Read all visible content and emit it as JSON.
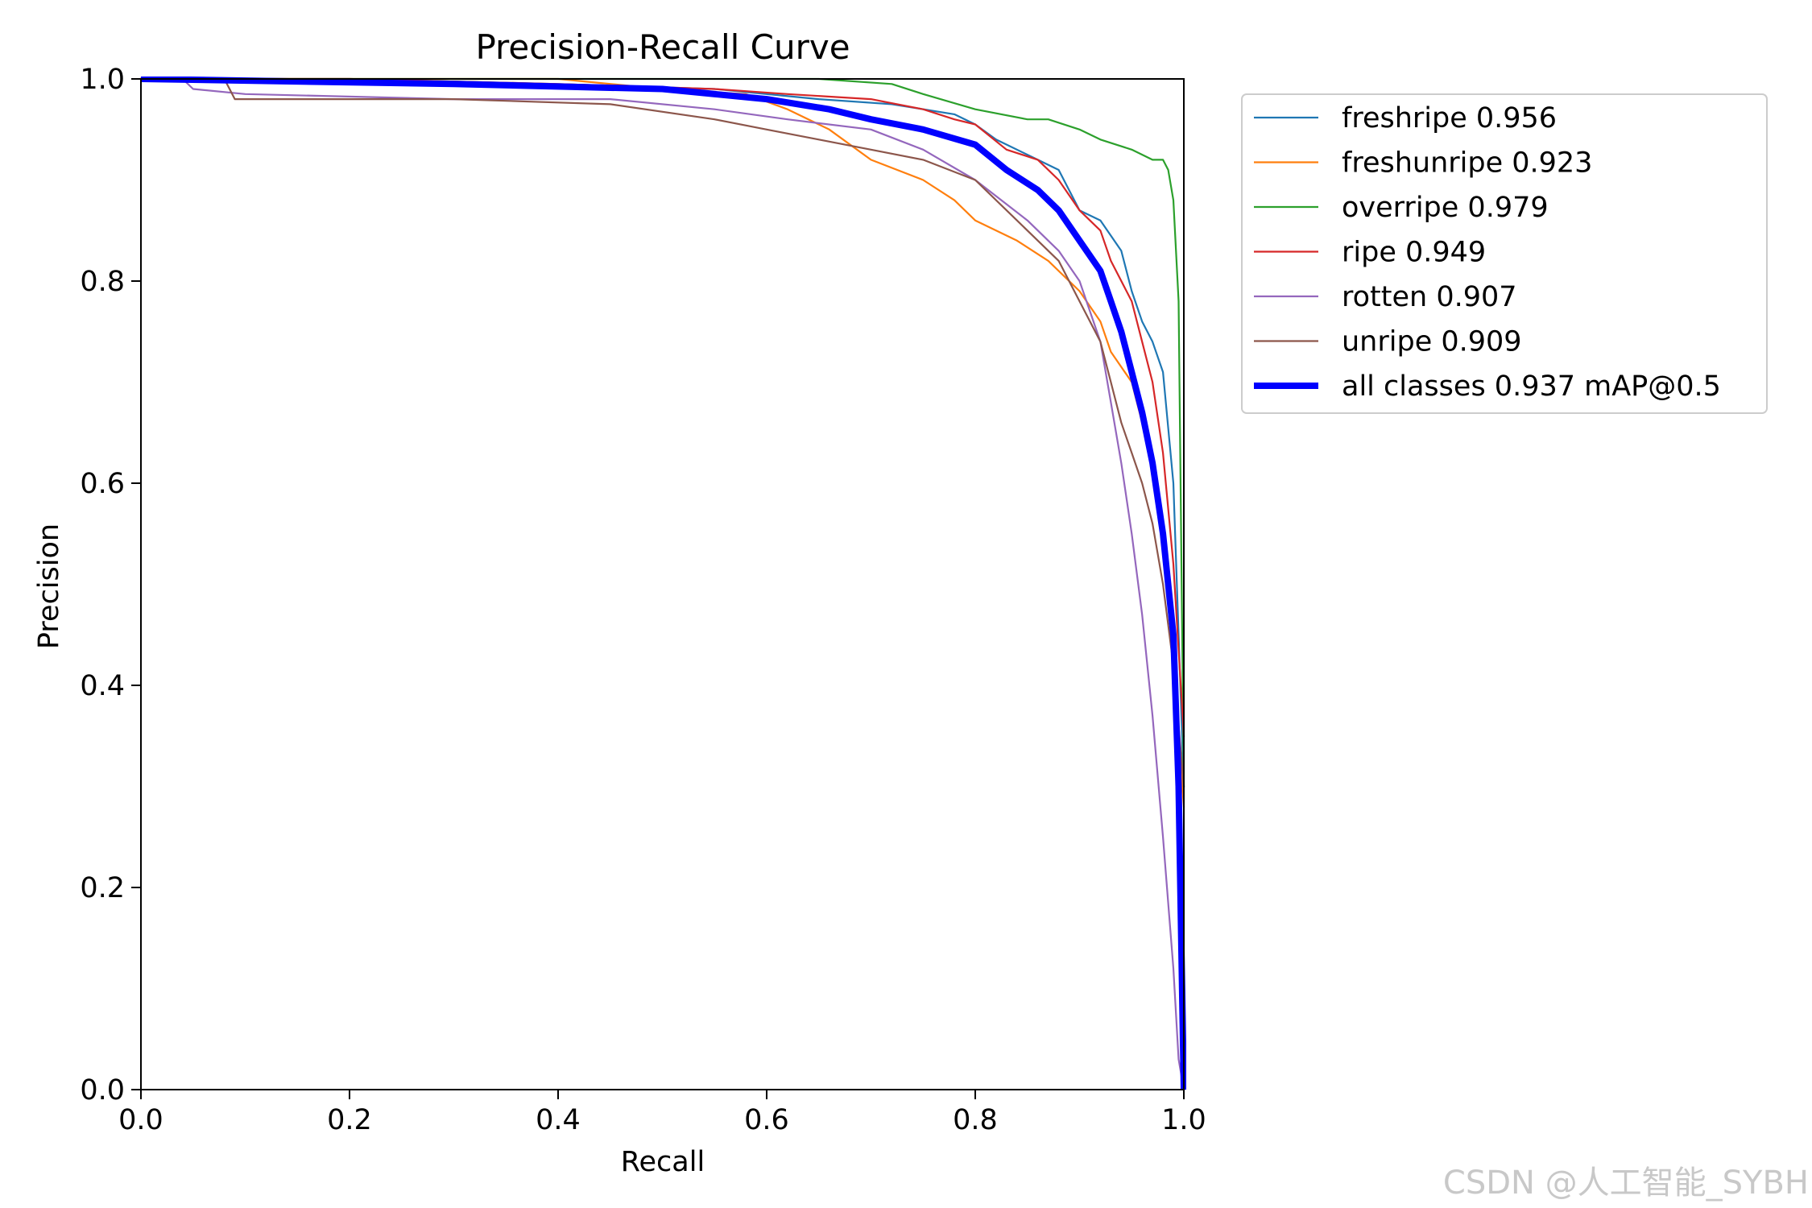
{
  "chart_data": {
    "type": "line",
    "title": "Precision-Recall Curve",
    "xlabel": "Recall",
    "ylabel": "Precision",
    "xlim": [
      0,
      1
    ],
    "ylim": [
      0,
      1
    ],
    "xticks": [
      "0.0",
      "0.2",
      "0.4",
      "0.6",
      "0.8",
      "1.0"
    ],
    "yticks": [
      "0.0",
      "0.2",
      "0.4",
      "0.6",
      "0.8",
      "1.0"
    ],
    "legend_position": "outside-top-right",
    "series": [
      {
        "name": "freshripe",
        "label": "freshripe 0.956",
        "color": "#1f77b4",
        "x": [
          0,
          0.2,
          0.4,
          0.55,
          0.65,
          0.72,
          0.78,
          0.8,
          0.82,
          0.86,
          0.88,
          0.9,
          0.92,
          0.94,
          0.95,
          0.96,
          0.97,
          0.98,
          0.99,
          0.995,
          1.0
        ],
        "y": [
          1.0,
          1.0,
          0.995,
          0.99,
          0.98,
          0.975,
          0.965,
          0.955,
          0.94,
          0.92,
          0.91,
          0.87,
          0.86,
          0.83,
          0.79,
          0.76,
          0.74,
          0.71,
          0.6,
          0.45,
          0.3
        ]
      },
      {
        "name": "freshunripe",
        "label": "freshunripe 0.923",
        "color": "#ff7f0e",
        "x": [
          0,
          0.2,
          0.4,
          0.5,
          0.58,
          0.62,
          0.66,
          0.7,
          0.75,
          0.78,
          0.8,
          0.84,
          0.87,
          0.9,
          0.92,
          0.93,
          0.95,
          0.96,
          0.97,
          0.98,
          0.99,
          1.0
        ],
        "y": [
          1.0,
          1.0,
          1.0,
          0.99,
          0.985,
          0.97,
          0.95,
          0.92,
          0.9,
          0.88,
          0.86,
          0.84,
          0.82,
          0.79,
          0.76,
          0.73,
          0.7,
          0.66,
          0.62,
          0.55,
          0.42,
          0.28
        ]
      },
      {
        "name": "overripe",
        "label": "overripe 0.979",
        "color": "#2ca02c",
        "x": [
          0,
          0.4,
          0.58,
          0.65,
          0.72,
          0.75,
          0.8,
          0.85,
          0.87,
          0.9,
          0.92,
          0.95,
          0.97,
          0.98,
          0.985,
          0.99,
          0.995,
          1.0
        ],
        "y": [
          1.0,
          1.0,
          1.0,
          1.0,
          0.995,
          0.985,
          0.97,
          0.96,
          0.96,
          0.95,
          0.94,
          0.93,
          0.92,
          0.92,
          0.91,
          0.88,
          0.78,
          0.3
        ]
      },
      {
        "name": "ripe",
        "label": "ripe 0.949",
        "color": "#d62728",
        "x": [
          0,
          0.2,
          0.4,
          0.55,
          0.62,
          0.7,
          0.75,
          0.78,
          0.8,
          0.83,
          0.86,
          0.88,
          0.9,
          0.92,
          0.93,
          0.95,
          0.96,
          0.97,
          0.98,
          0.99,
          1.0
        ],
        "y": [
          1.0,
          1.0,
          0.995,
          0.99,
          0.985,
          0.98,
          0.97,
          0.96,
          0.955,
          0.93,
          0.92,
          0.9,
          0.87,
          0.85,
          0.82,
          0.78,
          0.74,
          0.7,
          0.63,
          0.52,
          0.35
        ]
      },
      {
        "name": "rotten",
        "label": "rotten 0.907",
        "color": "#9467bd",
        "x": [
          0,
          0.04,
          0.05,
          0.1,
          0.3,
          0.45,
          0.55,
          0.62,
          0.7,
          0.75,
          0.8,
          0.85,
          0.88,
          0.9,
          0.92,
          0.93,
          0.94,
          0.95,
          0.96,
          0.97,
          0.98,
          0.99,
          0.995,
          1.0
        ],
        "y": [
          1.0,
          1.0,
          0.99,
          0.985,
          0.98,
          0.98,
          0.97,
          0.96,
          0.95,
          0.93,
          0.9,
          0.86,
          0.83,
          0.8,
          0.74,
          0.68,
          0.62,
          0.55,
          0.47,
          0.37,
          0.25,
          0.12,
          0.03,
          0.0
        ]
      },
      {
        "name": "unripe",
        "label": "unripe 0.909",
        "color": "#8c564b",
        "x": [
          0,
          0.08,
          0.09,
          0.3,
          0.45,
          0.55,
          0.6,
          0.65,
          0.7,
          0.75,
          0.8,
          0.84,
          0.88,
          0.9,
          0.92,
          0.93,
          0.94,
          0.95,
          0.96,
          0.97,
          0.98,
          0.99,
          1.0
        ],
        "y": [
          1.0,
          1.0,
          0.98,
          0.98,
          0.975,
          0.96,
          0.95,
          0.94,
          0.93,
          0.92,
          0.9,
          0.86,
          0.82,
          0.78,
          0.74,
          0.7,
          0.66,
          0.63,
          0.6,
          0.56,
          0.5,
          0.42,
          0.3
        ]
      },
      {
        "name": "all-classes",
        "label": "all classes 0.937 mAP@0.5",
        "color": "#0000ff",
        "x": [
          0,
          0.3,
          0.5,
          0.6,
          0.66,
          0.7,
          0.75,
          0.8,
          0.83,
          0.86,
          0.88,
          0.9,
          0.92,
          0.93,
          0.94,
          0.95,
          0.96,
          0.97,
          0.98,
          0.99,
          0.995,
          1.0
        ],
        "y": [
          1.0,
          0.995,
          0.99,
          0.98,
          0.97,
          0.96,
          0.95,
          0.935,
          0.91,
          0.89,
          0.87,
          0.84,
          0.81,
          0.78,
          0.75,
          0.71,
          0.67,
          0.62,
          0.55,
          0.45,
          0.3,
          0.0
        ]
      }
    ]
  },
  "watermark": "CSDN @人工智能_SYBH"
}
